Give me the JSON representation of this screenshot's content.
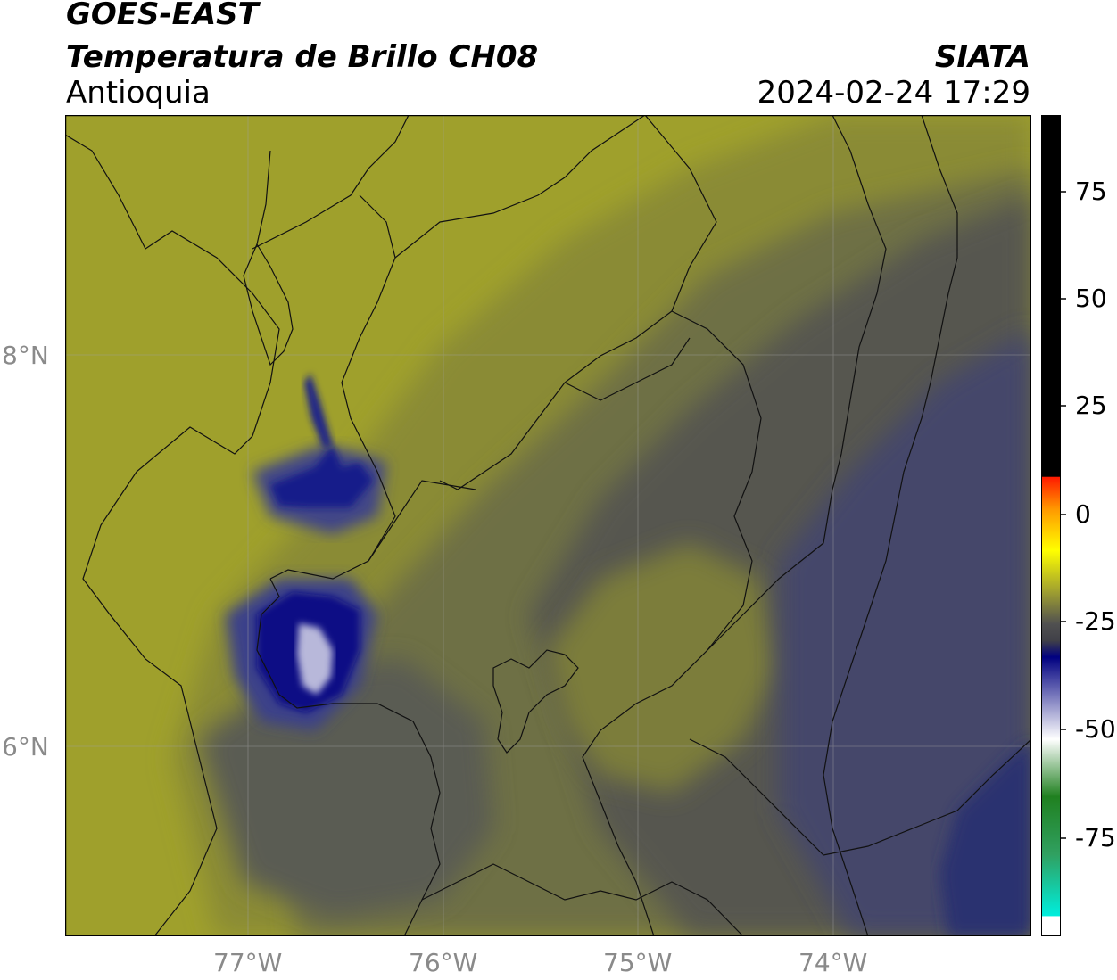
{
  "header": {
    "satellite": "GOES-EAST",
    "product": "Temperatura de Brillo CH08",
    "region": "Antioquia",
    "brand": "SIATA",
    "timestamp": "2024-02-24 17:29"
  },
  "map": {
    "longitude_labels": [
      "77°W",
      "76°W",
      "75°W",
      "74°W"
    ],
    "latitude_labels": [
      "8°N",
      "6°N"
    ],
    "colors": {
      "warm_yellow": "#a9aa26",
      "olive": "#7c7d3a",
      "gray": "#4e4f52",
      "navy": "#2b2f6b",
      "deep_blue": "#0a0f85",
      "cold_white": "#c8c8e0"
    }
  },
  "colorbar": {
    "ticks": [
      "75",
      "50",
      "25",
      "0",
      "-25",
      "-50",
      "-75"
    ],
    "colors": {
      "black": "#000000",
      "red": "#ff1a00",
      "orange": "#ff9900",
      "yellow": "#ffff00",
      "olive": "#a0a030",
      "gray": "#505050",
      "navy": "#000080",
      "white": "#ffffff",
      "green": "#208020",
      "cyan": "#00eedd"
    }
  }
}
